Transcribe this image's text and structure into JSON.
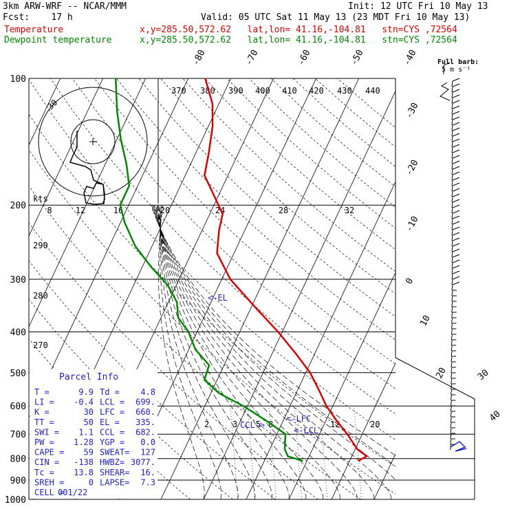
{
  "header": {
    "model": "3km ARW-WRF -- NCAR/MMM",
    "init": "Init: 12 UTC Fri 10 May 13",
    "fcst": "Fcst:    17 h",
    "valid": "Valid: 05 UTC Sat 11 May 13 (23 MDT Fri 10 May 13)",
    "temp_label": "Temperature",
    "temp_info": "x,y=285.50,572.62   lat,lon= 41.16,-104.81   stn=CYS ,72564",
    "dew_label": "Dewpoint temperature",
    "dew_info": "x,y=285.50,572.62   lat,lon= 41.16,-104.81   stn=CYS ,72564"
  },
  "colors": {
    "temperature": "#e00000",
    "dewpoint": "#008800",
    "parcel_text": "#2222cc",
    "grid": "#000000",
    "hodograph_trace": "#000000"
  },
  "chart_data": {
    "type": "skew-t",
    "pressure_axis": {
      "levels": [
        100,
        200,
        300,
        400,
        500,
        600,
        700,
        800,
        900,
        1000
      ],
      "labels": [
        "100",
        "200",
        "300",
        "400",
        "500",
        "600",
        "700",
        "800",
        "900",
        "1000"
      ],
      "scale": "log"
    },
    "isotherm_labels": [
      {
        "value": -80,
        "label": "-80"
      },
      {
        "value": -70,
        "label": "-70"
      },
      {
        "value": -60,
        "label": "-60"
      },
      {
        "value": -50,
        "label": "-50"
      },
      {
        "value": -40,
        "label": "-40"
      },
      {
        "value": -30,
        "label": "-30"
      },
      {
        "value": -20,
        "label": "-20"
      },
      {
        "value": -10,
        "label": "-10"
      },
      {
        "value": 0,
        "label": "0"
      },
      {
        "value": 10,
        "label": "10"
      },
      {
        "value": 20,
        "label": "20"
      },
      {
        "value": 30,
        "label": "30"
      },
      {
        "value": 40,
        "label": "40"
      }
    ],
    "theta_labels": [
      "370",
      "380",
      "390",
      "400",
      "410",
      "420",
      "430",
      "440",
      "290",
      "280",
      "270"
    ],
    "mixing_ratio_labels": [
      "2",
      "3",
      "5",
      "8",
      "12",
      "20"
    ],
    "hodograph_speed_labels": [
      "8",
      "12",
      "16",
      "20",
      "24",
      "28",
      "32"
    ],
    "hodograph_units": "kts",
    "hodograph_ring_label": "30",
    "temperature": [
      {
        "p": 810,
        "t": 12.0
      },
      {
        "p": 790,
        "t": 13.5
      },
      {
        "p": 760,
        "t": 10.5
      },
      {
        "p": 700,
        "t": 6.5
      },
      {
        "p": 650,
        "t": 2.5
      },
      {
        "p": 600,
        "t": -1.5
      },
      {
        "p": 550,
        "t": -5.0
      },
      {
        "p": 500,
        "t": -9.0
      },
      {
        "p": 450,
        "t": -14.5
      },
      {
        "p": 400,
        "t": -21.0
      },
      {
        "p": 350,
        "t": -29.0
      },
      {
        "p": 300,
        "t": -38.0
      },
      {
        "p": 260,
        "t": -44.0
      },
      {
        "p": 230,
        "t": -46.0
      },
      {
        "p": 210,
        "t": -47.0
      },
      {
        "p": 190,
        "t": -51.0
      },
      {
        "p": 170,
        "t": -55.5
      },
      {
        "p": 150,
        "t": -57.0
      },
      {
        "p": 130,
        "t": -59.0
      },
      {
        "p": 115,
        "t": -61.5
      },
      {
        "p": 100,
        "t": -66.0
      }
    ],
    "dewpoint": [
      {
        "p": 810,
        "t": -1.0
      },
      {
        "p": 790,
        "t": -5.0
      },
      {
        "p": 760,
        "t": -6.5
      },
      {
        "p": 700,
        "t": -8.0
      },
      {
        "p": 650,
        "t": -14.0
      },
      {
        "p": 600,
        "t": -21.0
      },
      {
        "p": 560,
        "t": -28.0
      },
      {
        "p": 520,
        "t": -33.0
      },
      {
        "p": 480,
        "t": -33.5
      },
      {
        "p": 440,
        "t": -38.5
      },
      {
        "p": 400,
        "t": -42.0
      },
      {
        "p": 370,
        "t": -46.0
      },
      {
        "p": 340,
        "t": -48.0
      },
      {
        "p": 310,
        "t": -52.0
      },
      {
        "p": 280,
        "t": -58.0
      },
      {
        "p": 250,
        "t": -64.0
      },
      {
        "p": 220,
        "t": -69.0
      },
      {
        "p": 200,
        "t": -72.0
      },
      {
        "p": 180,
        "t": -72.0
      },
      {
        "p": 160,
        "t": -75.0
      },
      {
        "p": 140,
        "t": -79.0
      },
      {
        "p": 120,
        "t": -83.0
      },
      {
        "p": 100,
        "t": -87.0
      }
    ],
    "annotations": [
      {
        "label": "<-EL",
        "p": 335
      },
      {
        "label": "<-LFC",
        "p": 660
      },
      {
        "label": "<-LCL",
        "p": 699
      },
      {
        "label": "CCL->",
        "p": 682
      }
    ],
    "wind_barb_legend": {
      "title": "Full barb:",
      "value": "5 m s⁻¹"
    }
  },
  "parcel_info": {
    "title": "Parcel Info",
    "rows": [
      [
        "T  =",
        "9.9",
        "Td =",
        "4.8"
      ],
      [
        "LI =",
        "-0.4",
        "LCL =",
        "699."
      ],
      [
        "K  =",
        "30",
        "LFC =",
        "660."
      ],
      [
        "TT =",
        "50",
        "EL  =",
        "335."
      ],
      [
        "SWI =",
        "1.1",
        "CCL =",
        "682."
      ],
      [
        "PW =",
        "1.28",
        "YGP =",
        "0.0"
      ],
      [
        "CAPE =",
        "59",
        "SWEAT=",
        "127"
      ],
      [
        "CIN =",
        "-138",
        "HWBZ=",
        "3077."
      ],
      [
        "Tc =",
        "13.8",
        "SHEAR=",
        "16."
      ],
      [
        "SREH =",
        "0",
        "LAPSE=",
        "7.3"
      ],
      [
        "CELL =",
        "001/22",
        "",
        ""
      ]
    ]
  }
}
